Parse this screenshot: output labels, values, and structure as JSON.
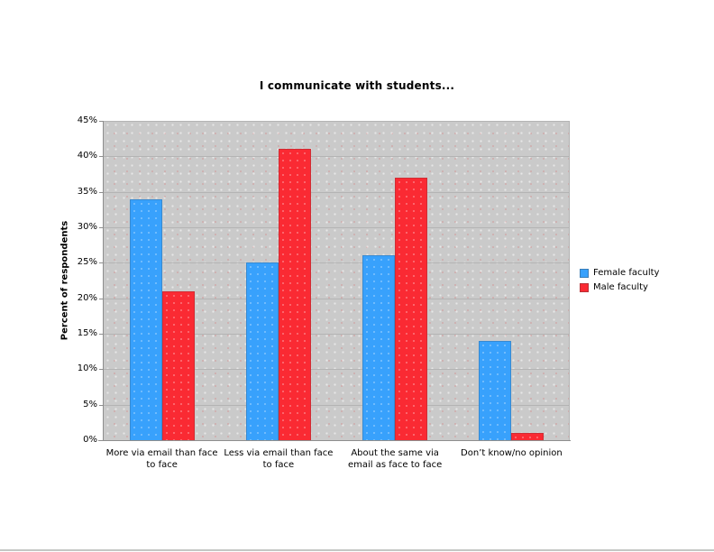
{
  "title": "I communicate with students...",
  "colors": {
    "female": "#38A1FC",
    "male": "#FA2A33",
    "plot_background": "#cacaca",
    "gridline": "#b4b4b4",
    "axis": "#8e8e8e"
  },
  "x_labels": [
    "More via email than face\nto face",
    "Less via email than face\nto face",
    "About the same via\nemail as face to face",
    "Don’t know/no opinion"
  ],
  "chart_data": {
    "type": "bar",
    "title": "I communicate with students...",
    "xlabel": "",
    "ylabel": "Percent of respondents",
    "ylim": [
      0,
      45
    ],
    "ytick_step": 5,
    "ytick_format": "percent",
    "grid": true,
    "legend_position": "right",
    "categories": [
      "More via email than face to face",
      "Less via email than face to face",
      "About the same via email as face to face",
      "Don't know/no opinion"
    ],
    "series": [
      {
        "name": "Female faculty",
        "color": "#38A1FC",
        "values": [
          34,
          25,
          26,
          14
        ]
      },
      {
        "name": "Male faculty",
        "color": "#FA2A33",
        "values": [
          21,
          41,
          37,
          1
        ]
      }
    ]
  }
}
